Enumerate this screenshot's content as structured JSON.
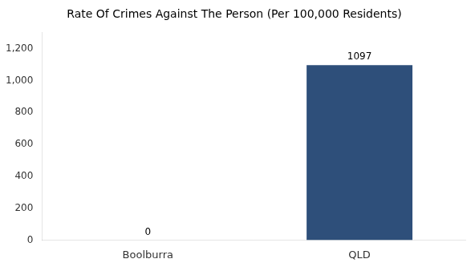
{
  "chart_data": {
    "type": "bar",
    "title": "Rate Of Crimes Against The Person (Per 100,000 Residents)",
    "categories": [
      "Boolburra",
      "QLD"
    ],
    "values": [
      0,
      1097
    ],
    "color": "#2e4f7a",
    "ylim": [
      0,
      1300
    ],
    "yticks": [
      0,
      200,
      400,
      600,
      800,
      1000,
      1200
    ],
    "grid": false,
    "data_labels": true
  }
}
